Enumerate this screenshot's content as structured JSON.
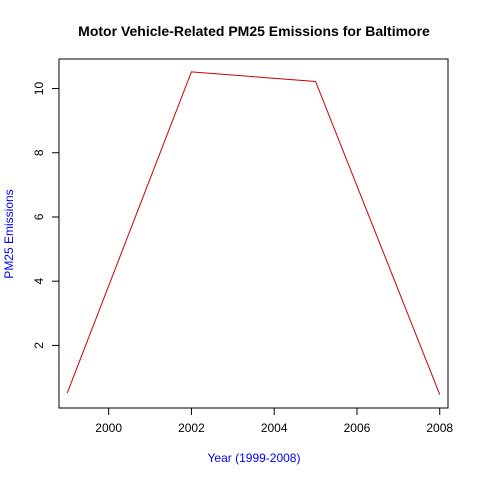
{
  "chart_data": {
    "type": "line",
    "title": "Motor Vehicle-Related PM25 Emissions for Baltimore",
    "xlabel": "Year (1999-2008)",
    "ylabel": "PM25 Emissions",
    "label_color": "#0000FF",
    "line_color": "#CC0000",
    "x": [
      1999,
      2002,
      2005,
      2008
    ],
    "series": [
      {
        "values": [
          0.52,
          10.52,
          10.22,
          0.47
        ]
      }
    ],
    "xlim": [
      1998.8,
      2008.2
    ],
    "ylim": [
      0.05,
      10.92
    ],
    "xticks": [
      2000,
      2002,
      2004,
      2006,
      2008
    ],
    "yticks": [
      2,
      4,
      6,
      8,
      10
    ],
    "grid": false,
    "legend": "none"
  }
}
